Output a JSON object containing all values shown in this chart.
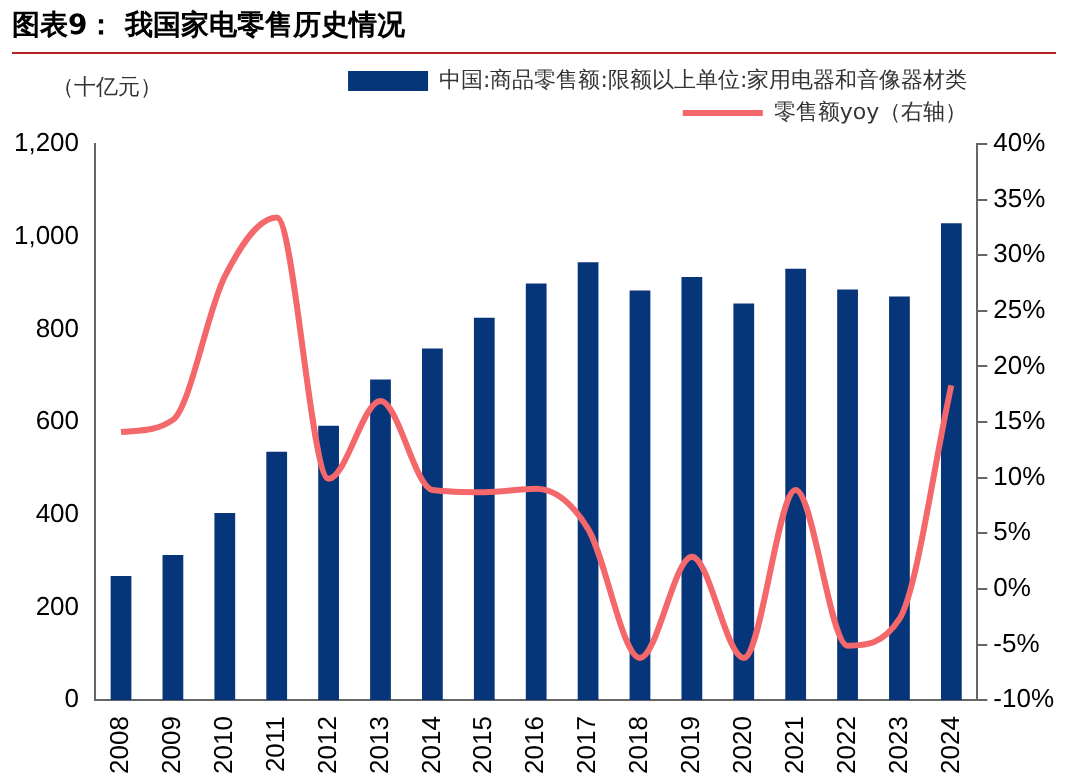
{
  "chart_data": {
    "type": "bar",
    "title": "图表9：  我国家电零售历史情况",
    "ylabel": "（十亿元）",
    "categories": [
      "2008",
      "2009",
      "2010",
      "2011",
      "2012",
      "2013",
      "2014",
      "2015",
      "2016",
      "2017",
      "2018",
      "2019",
      "2020",
      "2021",
      "2022",
      "2023",
      "2024"
    ],
    "series": [
      {
        "name": "中国:商品零售额:限额以上单位:家用电器和音像器材类",
        "color": "#06357a",
        "values": [
          268,
          313,
          404,
          536,
          592,
          692,
          759,
          825,
          899,
          945,
          884,
          913,
          856,
          931,
          886,
          871,
          1029
        ]
      },
      {
        "name": "零售额yoy（右轴）",
        "type": "line",
        "axis": "y2",
        "color": "#f4676a",
        "values": [
          14.1,
          15.2,
          28.1,
          33.4,
          9.9,
          16.9,
          8.9,
          8.7,
          9.0,
          5.4,
          -6.2,
          2.9,
          -6.2,
          8.9,
          -5.1,
          -2.7,
          18.3
        ]
      }
    ],
    "ylim": [
      0,
      1200
    ],
    "yticks": [
      {
        "value": 0,
        "label": "0"
      },
      {
        "value": 200,
        "label": "200"
      },
      {
        "value": 400,
        "label": "400"
      },
      {
        "value": 600,
        "label": "600"
      },
      {
        "value": 800,
        "label": "800"
      },
      {
        "value": 1000,
        "label": "1,000"
      },
      {
        "value": 1200,
        "label": "1,200"
      }
    ],
    "y2lim": [
      -10,
      40
    ],
    "y2ticks": [
      {
        "value": -10,
        "label": "-10%"
      },
      {
        "value": -5,
        "label": "-5%"
      },
      {
        "value": 0,
        "label": "0%"
      },
      {
        "value": 5,
        "label": "5%"
      },
      {
        "value": 10,
        "label": "10%"
      },
      {
        "value": 15,
        "label": "15%"
      },
      {
        "value": 20,
        "label": "20%"
      },
      {
        "value": 25,
        "label": "25%"
      },
      {
        "value": 30,
        "label": "30%"
      },
      {
        "value": 35,
        "label": "35%"
      },
      {
        "value": 40,
        "label": "40%"
      }
    ],
    "grid": false,
    "legend": "top"
  }
}
